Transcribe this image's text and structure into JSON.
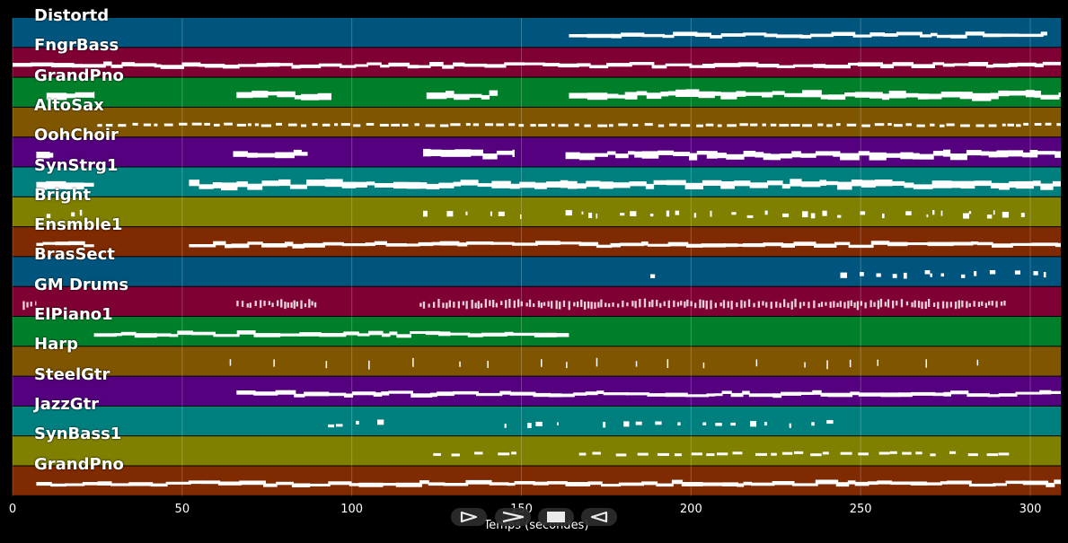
{
  "timeline": {
    "x_axis_label": "Temps (secondes)",
    "x_ticks": [
      "0",
      "50",
      "100",
      "150",
      "200",
      "250",
      "300"
    ],
    "x_range_seconds": [
      0,
      309
    ]
  },
  "tracks": [
    {
      "label": "Distortd",
      "color": "#00557f"
    },
    {
      "label": "FngrBass",
      "color": "#7f0033"
    },
    {
      "label": "GrandPno",
      "color": "#007f2a"
    },
    {
      "label": "AltoSax",
      "color": "#7f5500"
    },
    {
      "label": "OohChoir",
      "color": "#55007f"
    },
    {
      "label": "SynStrg1",
      "color": "#007f7f"
    },
    {
      "label": "Bright",
      "color": "#7f7f00"
    },
    {
      "label": "Ensmble1",
      "color": "#7f2a00"
    },
    {
      "label": "BrasSect",
      "color": "#00557f"
    },
    {
      "label": "GM Drums",
      "color": "#7f0033"
    },
    {
      "label": "ElPiano1",
      "color": "#007f2a"
    },
    {
      "label": "Harp",
      "color": "#7f5500"
    },
    {
      "label": "SteelGtr",
      "color": "#55007f"
    },
    {
      "label": "JazzGtr",
      "color": "#007f7f"
    },
    {
      "label": "SynBass1",
      "color": "#7f7f00"
    },
    {
      "label": "GrandPno",
      "color": "#7f2a00"
    }
  ],
  "controls": {
    "play_icon": "play-icon",
    "fast_forward_icon": "fast-forward-icon",
    "stop_icon": "stop-icon",
    "rewind_icon": "rewind-icon"
  }
}
